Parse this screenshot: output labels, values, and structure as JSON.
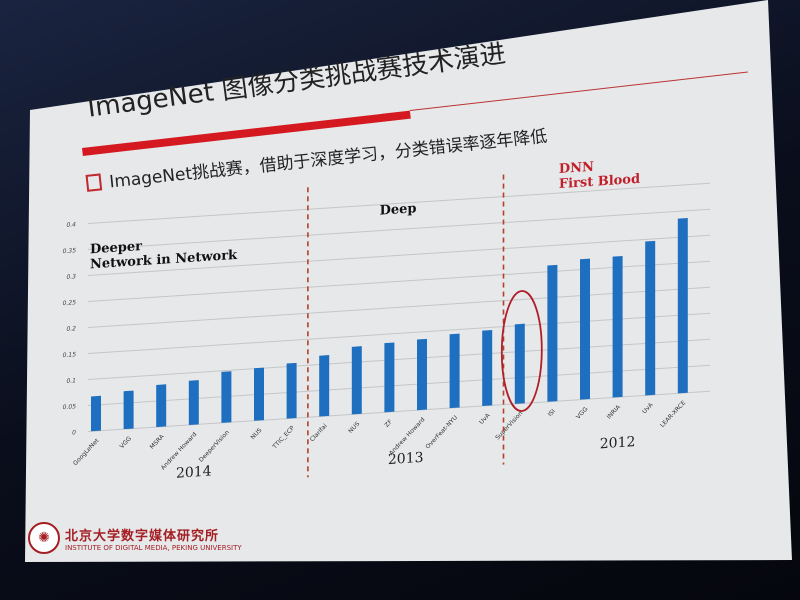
{
  "slide": {
    "title": "ImageNet 图像分类挑战赛技术演进",
    "bullet": "ImageNet挑战赛，借助于深度学习，分类错误率逐年降低",
    "logo": {
      "cn": "北京大学数字媒体研究所",
      "en": "INSTITUTE OF DIGITAL MEDIA, PEKING UNIVERSITY"
    },
    "accent_color": "#d41a20"
  },
  "chart_data": {
    "type": "bar",
    "categories": [
      "GoogLeNet",
      "VGG",
      "MSRA",
      "Andrew Howard",
      "DeeperVision",
      "NUS",
      "TTIC_ECP",
      "Clarifai",
      "NUS",
      "ZF",
      "Andrew Howard",
      "OverFeat-NYU",
      "UvA",
      "SuperVision",
      "ISI",
      "VGG",
      "INRIA",
      "UvA",
      "LEAR-XRCE"
    ],
    "values": [
      0.067,
      0.073,
      0.081,
      0.085,
      0.098,
      0.101,
      0.106,
      0.117,
      0.13,
      0.133,
      0.136,
      0.142,
      0.145,
      0.153,
      0.262,
      0.27,
      0.271,
      0.296,
      0.336
    ],
    "ylim": [
      0,
      0.4
    ],
    "yticks": [
      "0",
      "0.05",
      "0.1",
      "0.15",
      "0.2",
      "0.25",
      "0.3",
      "0.35",
      "0.4"
    ],
    "grid": true,
    "bar_color": "#1f6fc0",
    "groups": [
      {
        "year": "2014",
        "annotation": [
          "Deeper",
          "Network in Network"
        ],
        "annotation_color": "#111111"
      },
      {
        "year": "2013",
        "annotation": [
          "Deep"
        ],
        "annotation_color": "#111111"
      },
      {
        "year": "2012",
        "annotation": [
          "DNN",
          "First Blood"
        ],
        "annotation_color": "#c0202a"
      }
    ],
    "highlighted": "SuperVision"
  }
}
